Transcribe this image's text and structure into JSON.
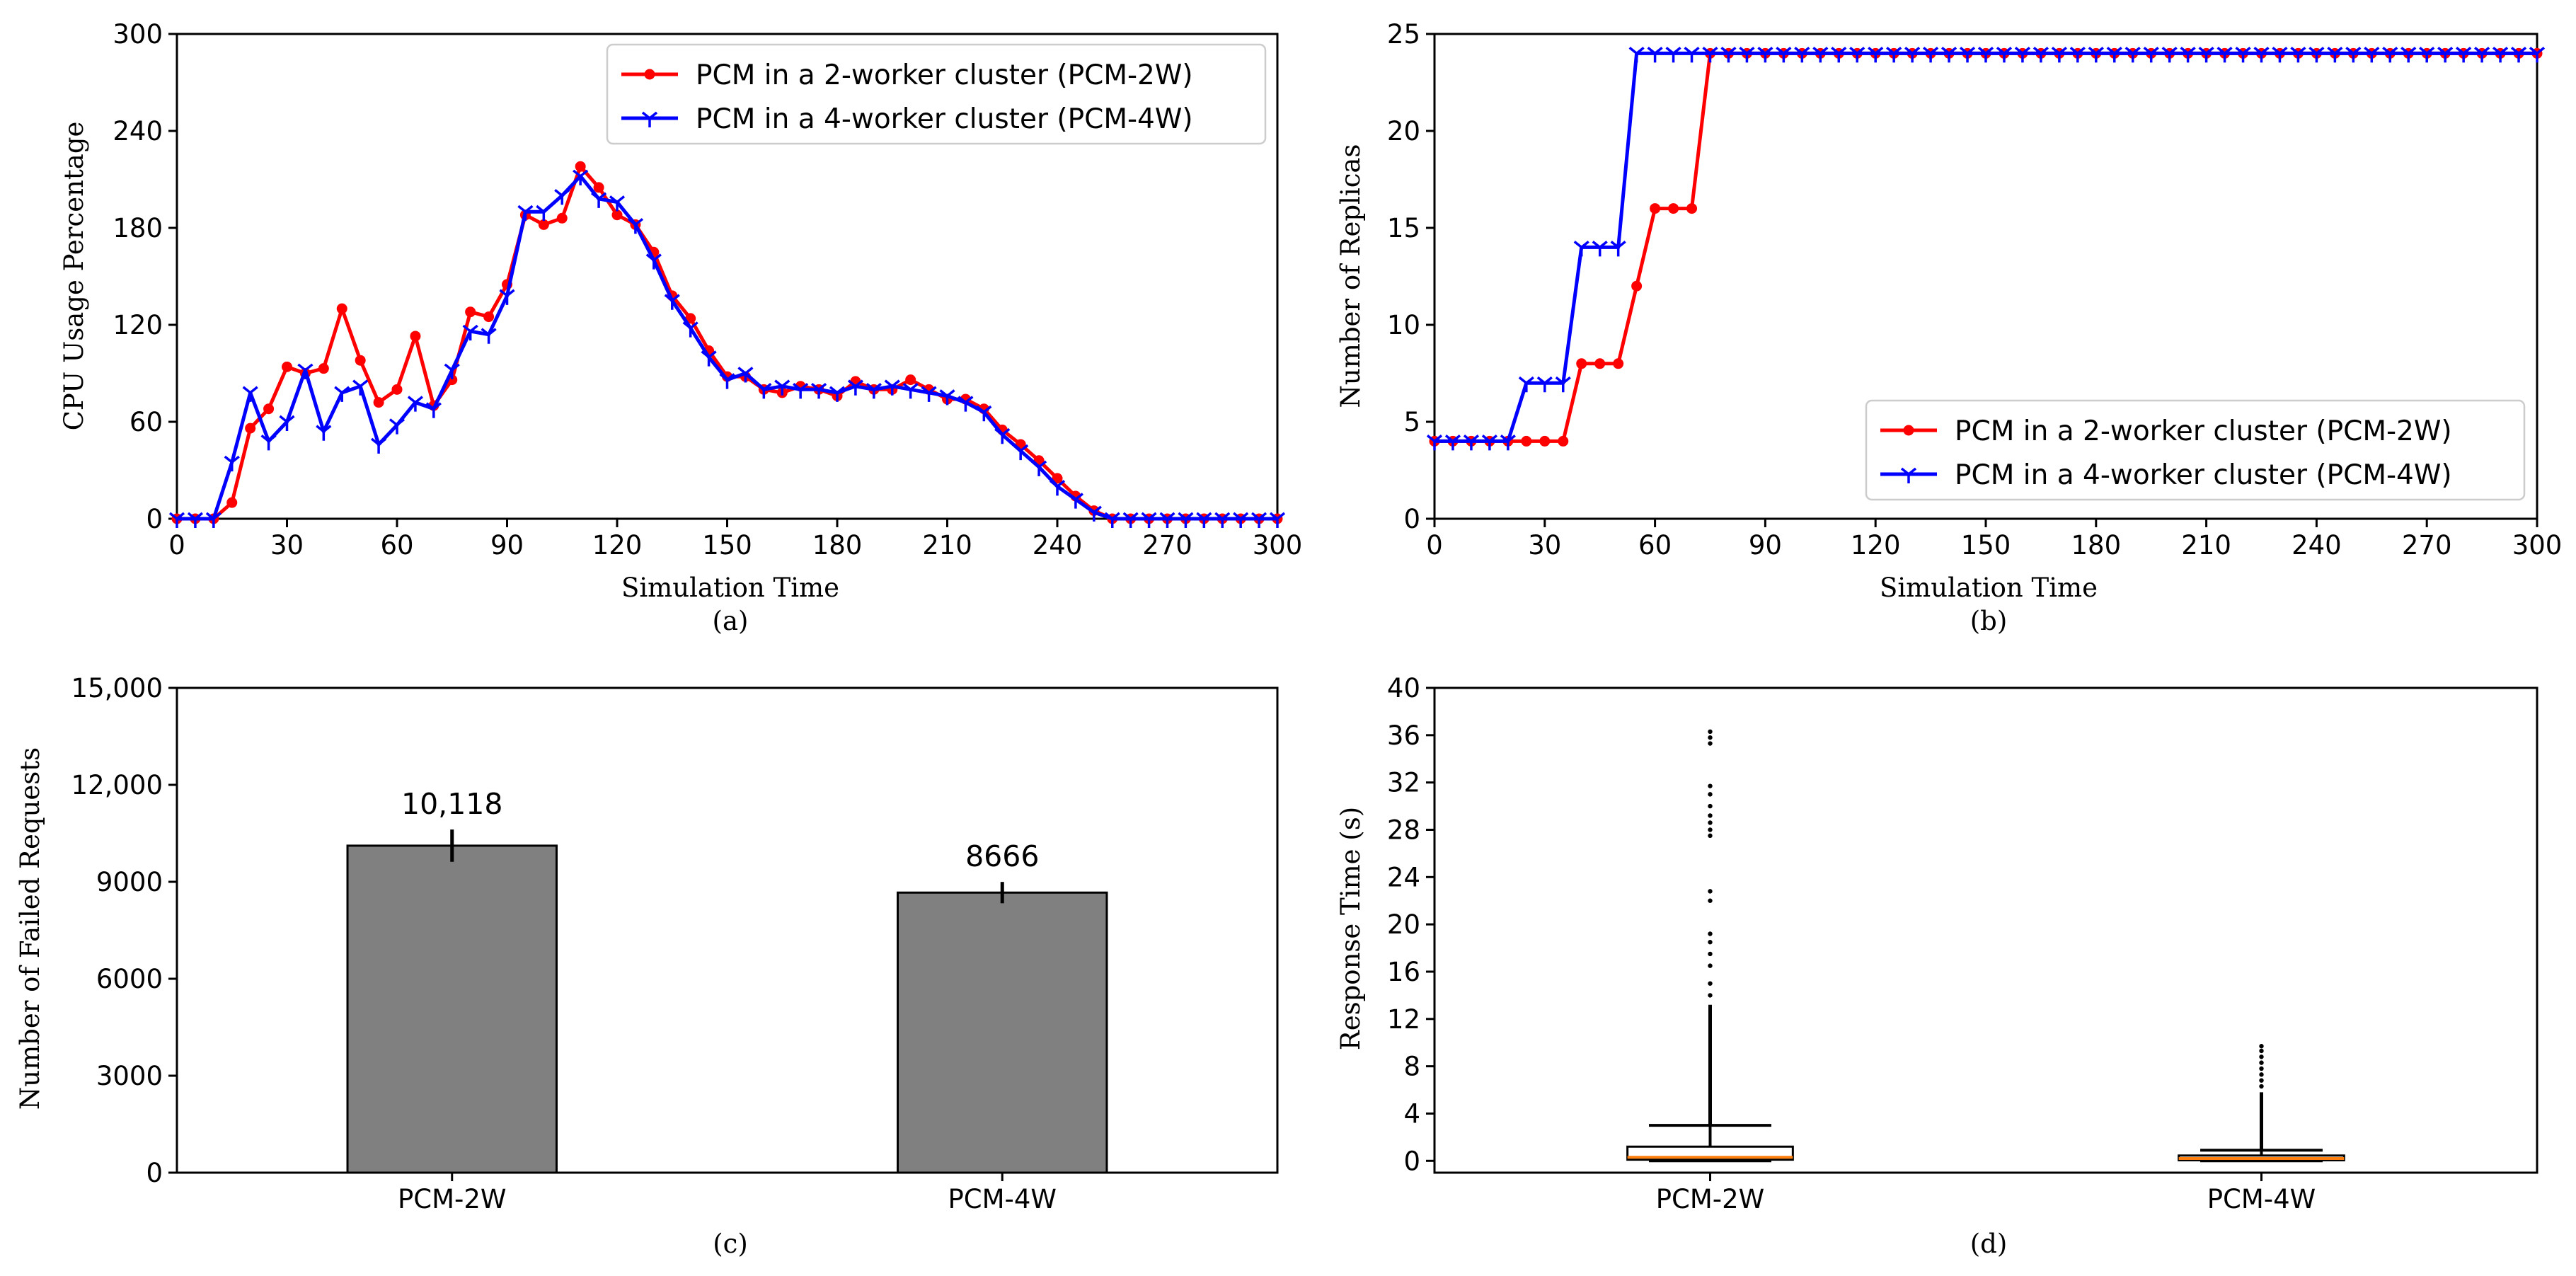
{
  "chart_data": [
    {
      "id": "a",
      "type": "line",
      "subtitle": "(a)",
      "xlabel": "Simulation Time",
      "ylabel": "CPU Usage Percentage",
      "xlim": [
        0,
        300
      ],
      "ylim": [
        0,
        300
      ],
      "xticks": [
        0,
        30,
        60,
        90,
        120,
        150,
        180,
        210,
        240,
        270,
        300
      ],
      "yticks": [
        0,
        60,
        120,
        180,
        240,
        300
      ],
      "grid": false,
      "legend_position": "top-right",
      "series": [
        {
          "name": "PCM in a 2-worker cluster (PCM-2W)",
          "color": "#ff0000",
          "marker": "dot",
          "x": [
            0,
            5,
            10,
            15,
            20,
            25,
            30,
            35,
            40,
            45,
            50,
            55,
            60,
            65,
            70,
            75,
            80,
            85,
            90,
            95,
            100,
            105,
            110,
            115,
            120,
            125,
            130,
            135,
            140,
            145,
            150,
            155,
            160,
            165,
            170,
            175,
            180,
            185,
            190,
            195,
            200,
            205,
            210,
            215,
            220,
            225,
            230,
            235,
            240,
            245,
            250,
            255,
            260,
            265,
            270,
            275,
            280,
            285,
            290,
            295,
            300
          ],
          "y": [
            0,
            0,
            0,
            10,
            56,
            68,
            94,
            90,
            93,
            130,
            98,
            72,
            80,
            113,
            70,
            86,
            128,
            125,
            145,
            188,
            182,
            186,
            218,
            205,
            188,
            182,
            165,
            138,
            124,
            104,
            88,
            88,
            80,
            78,
            82,
            80,
            76,
            85,
            80,
            80,
            86,
            80,
            74,
            74,
            68,
            55,
            46,
            36,
            25,
            14,
            5,
            0,
            0,
            0,
            0,
            0,
            0,
            0,
            0,
            0,
            0
          ]
        },
        {
          "name": "PCM in a 4-worker cluster (PCM-4W)",
          "color": "#0000ff",
          "marker": "tri",
          "x": [
            0,
            5,
            10,
            15,
            20,
            25,
            30,
            35,
            40,
            45,
            50,
            55,
            60,
            65,
            70,
            75,
            80,
            85,
            90,
            95,
            100,
            105,
            110,
            115,
            120,
            125,
            130,
            135,
            140,
            145,
            150,
            155,
            160,
            165,
            170,
            175,
            180,
            185,
            190,
            195,
            200,
            205,
            210,
            215,
            220,
            225,
            230,
            235,
            240,
            245,
            250,
            255,
            260,
            265,
            270,
            275,
            280,
            285,
            290,
            295,
            300
          ],
          "y": [
            0,
            0,
            0,
            35,
            78,
            48,
            60,
            92,
            54,
            78,
            82,
            46,
            58,
            72,
            68,
            92,
            116,
            114,
            138,
            190,
            190,
            200,
            212,
            198,
            196,
            182,
            160,
            135,
            118,
            100,
            86,
            90,
            80,
            82,
            80,
            80,
            78,
            82,
            80,
            82,
            80,
            78,
            76,
            72,
            66,
            52,
            42,
            32,
            20,
            12,
            4,
            0,
            0,
            0,
            0,
            0,
            0,
            0,
            0,
            0,
            0
          ]
        }
      ]
    },
    {
      "id": "b",
      "type": "line",
      "subtitle": "(b)",
      "xlabel": "Simulation Time",
      "ylabel": "Number of Replicas",
      "xlim": [
        0,
        300
      ],
      "ylim": [
        0,
        25
      ],
      "xticks": [
        0,
        30,
        60,
        90,
        120,
        150,
        180,
        210,
        240,
        270,
        300
      ],
      "yticks": [
        0,
        5,
        10,
        15,
        20,
        25
      ],
      "grid": false,
      "legend_position": "bottom-right",
      "series": [
        {
          "name": "PCM in a 2-worker cluster (PCM-2W)",
          "color": "#ff0000",
          "marker": "dot",
          "x": [
            0,
            5,
            10,
            15,
            20,
            25,
            30,
            35,
            40,
            45,
            50,
            55,
            60,
            65,
            70,
            75,
            80,
            85,
            90,
            95,
            100,
            105,
            110,
            115,
            120,
            125,
            130,
            135,
            140,
            145,
            150,
            155,
            160,
            165,
            170,
            175,
            180,
            185,
            190,
            195,
            200,
            205,
            210,
            215,
            220,
            225,
            230,
            235,
            240,
            245,
            250,
            255,
            260,
            265,
            270,
            275,
            280,
            285,
            290,
            295,
            300
          ],
          "y": [
            4,
            4,
            4,
            4,
            4,
            4,
            4,
            4,
            8,
            8,
            8,
            12,
            16,
            16,
            16,
            24,
            24,
            24,
            24,
            24,
            24,
            24,
            24,
            24,
            24,
            24,
            24,
            24,
            24,
            24,
            24,
            24,
            24,
            24,
            24,
            24,
            24,
            24,
            24,
            24,
            24,
            24,
            24,
            24,
            24,
            24,
            24,
            24,
            24,
            24,
            24,
            24,
            24,
            24,
            24,
            24,
            24,
            24,
            24,
            24,
            24
          ]
        },
        {
          "name": "PCM in a 4-worker cluster (PCM-4W)",
          "color": "#0000ff",
          "marker": "tri",
          "x": [
            0,
            5,
            10,
            15,
            20,
            25,
            30,
            35,
            40,
            45,
            50,
            55,
            60,
            65,
            70,
            75,
            80,
            85,
            90,
            95,
            100,
            105,
            110,
            115,
            120,
            125,
            130,
            135,
            140,
            145,
            150,
            155,
            160,
            165,
            170,
            175,
            180,
            185,
            190,
            195,
            200,
            205,
            210,
            215,
            220,
            225,
            230,
            235,
            240,
            245,
            250,
            255,
            260,
            265,
            270,
            275,
            280,
            285,
            290,
            295,
            300
          ],
          "y": [
            4,
            4,
            4,
            4,
            4,
            7,
            7,
            7,
            14,
            14,
            14,
            24,
            24,
            24,
            24,
            24,
            24,
            24,
            24,
            24,
            24,
            24,
            24,
            24,
            24,
            24,
            24,
            24,
            24,
            24,
            24,
            24,
            24,
            24,
            24,
            24,
            24,
            24,
            24,
            24,
            24,
            24,
            24,
            24,
            24,
            24,
            24,
            24,
            24,
            24,
            24,
            24,
            24,
            24,
            24,
            24,
            24,
            24,
            24,
            24,
            24
          ]
        }
      ]
    },
    {
      "id": "c",
      "type": "bar",
      "subtitle": "(c)",
      "xlabel": "",
      "ylabel": "Number of Failed Requests",
      "ylim": [
        0,
        15000
      ],
      "yticks": [
        0,
        3000,
        6000,
        9000,
        12000,
        15000
      ],
      "ytick_labels": [
        "0",
        "3000",
        "6000",
        "9000",
        "12,000",
        "15,000"
      ],
      "categories": [
        "PCM-2W",
        "PCM-4W"
      ],
      "values": [
        10118,
        8666
      ],
      "value_labels": [
        "10,118",
        "8666"
      ],
      "error": [
        500,
        330
      ],
      "bar_color": "#808080"
    },
    {
      "id": "d",
      "type": "box",
      "subtitle": "(d)",
      "xlabel": "",
      "ylabel": "Response Time (s)",
      "ylim": [
        -1,
        40
      ],
      "yticks": [
        0,
        4,
        8,
        12,
        16,
        20,
        24,
        28,
        32,
        36,
        40
      ],
      "categories": [
        "PCM-2W",
        "PCM-4W"
      ],
      "boxes": [
        {
          "min": 0,
          "q1": 0.1,
          "median": 0.3,
          "q3": 1.2,
          "max": 3.0,
          "outliers_range": [
            3.0,
            13.2
          ],
          "sparse_outliers": [
            14,
            15,
            16.5,
            17.5,
            18.5,
            19.2,
            22,
            22.8,
            27.5,
            28,
            28.6,
            29.2,
            30,
            31,
            31.7,
            35.3,
            35.8,
            36.3
          ]
        },
        {
          "min": 0,
          "q1": 0.05,
          "median": 0.2,
          "q3": 0.45,
          "max": 0.9,
          "outliers_range": [
            0.9,
            5.8
          ],
          "sparse_outliers": [
            6.3,
            6.8,
            7.3,
            7.8,
            8.3,
            8.8,
            9.3,
            9.7
          ]
        }
      ]
    }
  ]
}
